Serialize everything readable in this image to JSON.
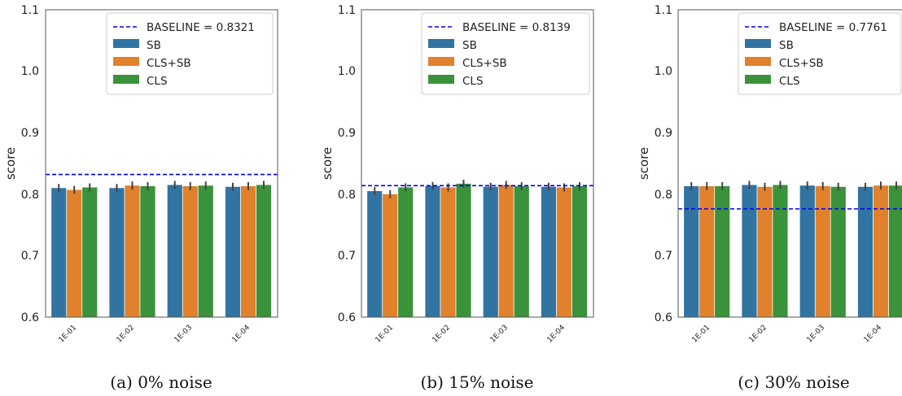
{
  "colors": {
    "SB": "#3274a1",
    "CLS+SB": "#e1812c",
    "CLS": "#3a923a",
    "baseline": "#0000ee",
    "errorbar": "#444444"
  },
  "chart_data": [
    {
      "type": "bar",
      "caption": "(a) 0% noise",
      "ylabel": "score",
      "ylim": [
        0.6,
        1.1
      ],
      "yticks": [
        "0.6",
        "0.7",
        "0.8",
        "0.9",
        "1.0",
        "1.1"
      ],
      "categories": [
        "1E-01",
        "1E-02",
        "1E-03",
        "1E-04"
      ],
      "series": [
        {
          "name": "SB",
          "values": [
            0.81,
            0.81,
            0.815,
            0.812
          ]
        },
        {
          "name": "CLS+SB",
          "values": [
            0.807,
            0.814,
            0.813,
            0.813
          ]
        },
        {
          "name": "CLS",
          "values": [
            0.811,
            0.813,
            0.814,
            0.815
          ]
        }
      ],
      "baseline": {
        "label": "BASELINE = 0.8321",
        "value": 0.8321
      },
      "legend": "top-right",
      "grid": false
    },
    {
      "type": "bar",
      "caption": "(b) 15% noise",
      "ylabel": "score",
      "ylim": [
        0.6,
        1.1
      ],
      "yticks": [
        "0.6",
        "0.7",
        "0.8",
        "0.9",
        "1.0",
        "1.1"
      ],
      "categories": [
        "1E-01",
        "1E-02",
        "1E-03",
        "1E-04"
      ],
      "series": [
        {
          "name": "SB",
          "values": [
            0.805,
            0.813,
            0.812,
            0.812
          ]
        },
        {
          "name": "CLS+SB",
          "values": [
            0.8,
            0.811,
            0.815,
            0.811
          ]
        },
        {
          "name": "CLS",
          "values": [
            0.811,
            0.817,
            0.813,
            0.813
          ]
        }
      ],
      "baseline": {
        "label": "BASELINE = 0.8139",
        "value": 0.8139
      },
      "legend": "top-right",
      "grid": false
    },
    {
      "type": "bar",
      "caption": "(c) 30% noise",
      "ylabel": "score",
      "ylim": [
        0.6,
        1.1
      ],
      "yticks": [
        "0.6",
        "0.7",
        "0.8",
        "0.9",
        "1.0",
        "1.1"
      ],
      "categories": [
        "1E-01",
        "1E-02",
        "1E-03",
        "1E-04"
      ],
      "series": [
        {
          "name": "SB",
          "values": [
            0.813,
            0.815,
            0.814,
            0.812
          ]
        },
        {
          "name": "CLS+SB",
          "values": [
            0.813,
            0.812,
            0.813,
            0.814
          ]
        },
        {
          "name": "CLS",
          "values": [
            0.813,
            0.815,
            0.812,
            0.814
          ]
        }
      ],
      "baseline": {
        "label": "BASELINE = 0.7761",
        "value": 0.7761
      },
      "legend": "top-right",
      "grid": false
    }
  ]
}
